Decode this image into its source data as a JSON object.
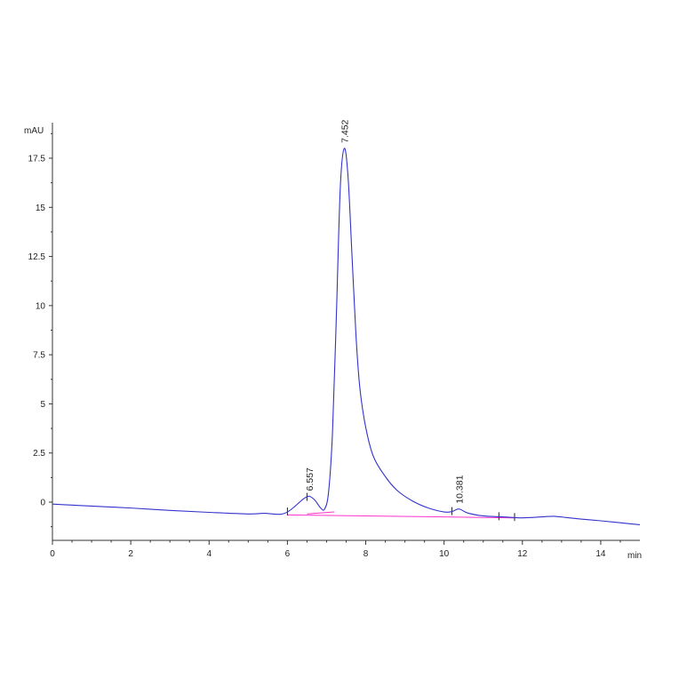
{
  "chart_data": {
    "type": "line",
    "title": "",
    "xlabel": "min",
    "ylabel": "mAU",
    "xlim": [
      0,
      15
    ],
    "ylim": [
      -2,
      19
    ],
    "grid": false,
    "x_ticks": [
      {
        "value": 0,
        "label": "0"
      },
      {
        "value": 2,
        "label": "2"
      },
      {
        "value": 4,
        "label": "4"
      },
      {
        "value": 6,
        "label": "6"
      },
      {
        "value": 8,
        "label": "8"
      },
      {
        "value": 10,
        "label": "10"
      },
      {
        "value": 12,
        "label": "12"
      },
      {
        "value": 14,
        "label": "14"
      }
    ],
    "y_ticks": [
      {
        "value": 0,
        "label": "0"
      },
      {
        "value": 2.5,
        "label": "2.5"
      },
      {
        "value": 5,
        "label": "5"
      },
      {
        "value": 7.5,
        "label": "7.5"
      },
      {
        "value": 10,
        "label": "10"
      },
      {
        "value": 12.5,
        "label": "12.5"
      },
      {
        "value": 15,
        "label": "15"
      },
      {
        "value": 17.5,
        "label": "17.5"
      }
    ],
    "series": [
      {
        "color": "#3333cc",
        "x": [
          0,
          0.5,
          1,
          2,
          3,
          4,
          5,
          5.4,
          5.8,
          6.0,
          6.2,
          6.4,
          6.557,
          6.7,
          6.85,
          6.95,
          7.05,
          7.15,
          7.25,
          7.35,
          7.452,
          7.55,
          7.65,
          7.75,
          7.85,
          8.0,
          8.2,
          8.5,
          8.8,
          9.2,
          9.6,
          10.0,
          10.2,
          10.381,
          10.6,
          11.0,
          11.5,
          12.0,
          12.5,
          12.8,
          13.2,
          13.6,
          14.0,
          14.5,
          15.0
        ],
        "y": [
          -0.1,
          -0.15,
          -0.2,
          -0.3,
          -0.42,
          -0.52,
          -0.6,
          -0.57,
          -0.62,
          -0.5,
          -0.2,
          0.15,
          0.3,
          0.1,
          -0.3,
          -0.35,
          0.5,
          3.5,
          9.5,
          16.0,
          18.0,
          16.5,
          12.5,
          8.5,
          5.8,
          3.8,
          2.3,
          1.3,
          0.6,
          0.05,
          -0.3,
          -0.5,
          -0.48,
          -0.35,
          -0.55,
          -0.7,
          -0.75,
          -0.8,
          -0.75,
          -0.72,
          -0.8,
          -0.88,
          -0.95,
          -1.05,
          -1.15
        ]
      }
    ],
    "baselines": [
      {
        "color": "#ff33cc",
        "x": [
          6.0,
          11.8
        ],
        "y": [
          -0.65,
          -0.8
        ]
      },
      {
        "color": "#ff33cc",
        "x": [
          6.5,
          7.2
        ],
        "y": [
          -0.6,
          -0.5
        ]
      }
    ],
    "peaks": [
      {
        "x": 6.557,
        "y": 0.3,
        "label": "6.557"
      },
      {
        "x": 7.452,
        "y": 18.0,
        "label": "7.452"
      },
      {
        "x": 10.381,
        "y": -0.35,
        "label": "10.381"
      }
    ],
    "event_marks_x": [
      6.0,
      6.5,
      10.2,
      11.4,
      11.8
    ]
  }
}
